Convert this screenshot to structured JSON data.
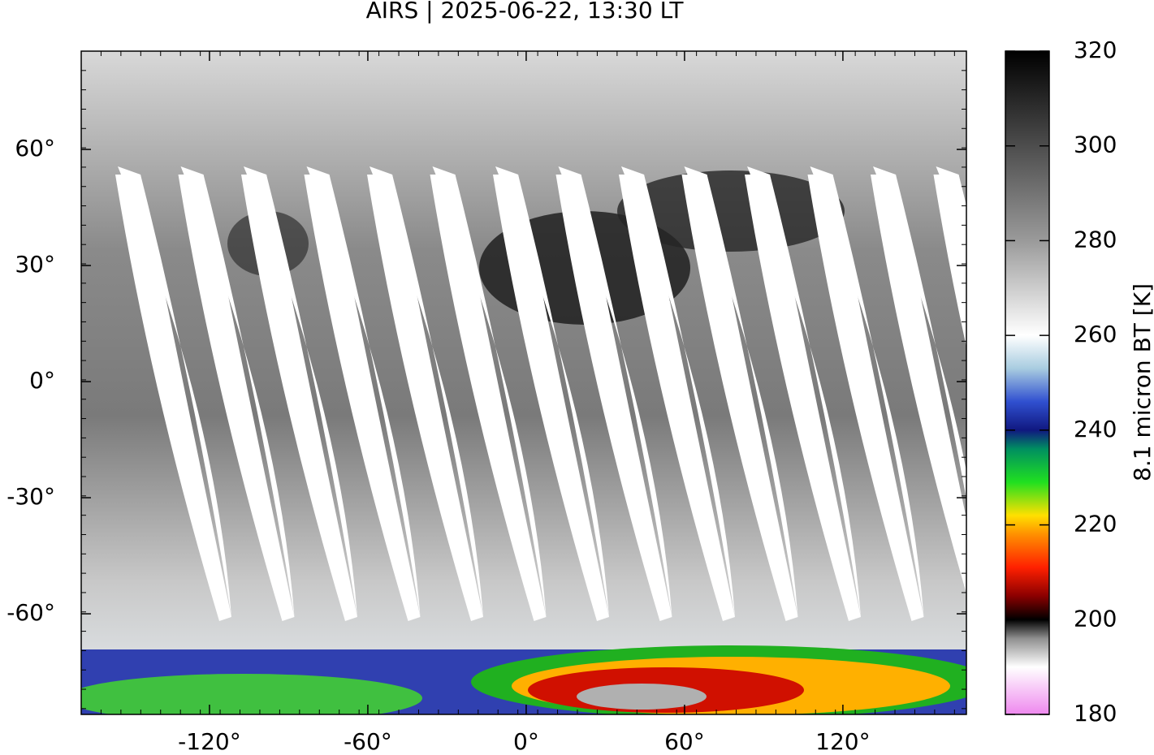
{
  "title": "AIRS | 2025-06-22, 13:30 LT",
  "map": {
    "xlim": [
      -168.6,
      166.8
    ],
    "ylim": [
      -86,
      85.4
    ],
    "xticks": [
      {
        "value": -120,
        "label": "-120°"
      },
      {
        "value": -60,
        "label": "-60°"
      },
      {
        "value": 0,
        "label": "0°"
      },
      {
        "value": 60,
        "label": "60°"
      },
      {
        "value": 120,
        "label": "120°"
      }
    ],
    "yticks": [
      {
        "value": -60,
        "label": "-60°"
      },
      {
        "value": -30,
        "label": "-30°"
      },
      {
        "value": 0,
        "label": "0°"
      },
      {
        "value": 30,
        "label": "30°"
      },
      {
        "value": 60,
        "label": "60°"
      }
    ]
  },
  "colorbar": {
    "label": "8.1 micron BT [K]",
    "lim": [
      180,
      320
    ],
    "ticks": [
      180,
      200,
      220,
      240,
      260,
      280,
      300,
      320
    ],
    "colormap": [
      {
        "value": 180,
        "color": "#ee88ee"
      },
      {
        "value": 190,
        "color": "#ffffff"
      },
      {
        "value": 196,
        "color": "#909090"
      },
      {
        "value": 200,
        "color": "#000000"
      },
      {
        "value": 205,
        "color": "#8b0000"
      },
      {
        "value": 211,
        "color": "#ff2000"
      },
      {
        "value": 218,
        "color": "#ff9000"
      },
      {
        "value": 222,
        "color": "#ffe000"
      },
      {
        "value": 229,
        "color": "#20e020"
      },
      {
        "value": 236,
        "color": "#009060"
      },
      {
        "value": 240,
        "color": "#101880"
      },
      {
        "value": 246,
        "color": "#3050d0"
      },
      {
        "value": 253,
        "color": "#a8cce0"
      },
      {
        "value": 260,
        "color": "#ffffff"
      },
      {
        "value": 280,
        "color": "#9a9a9a"
      },
      {
        "value": 320,
        "color": "#000000"
      }
    ]
  }
}
